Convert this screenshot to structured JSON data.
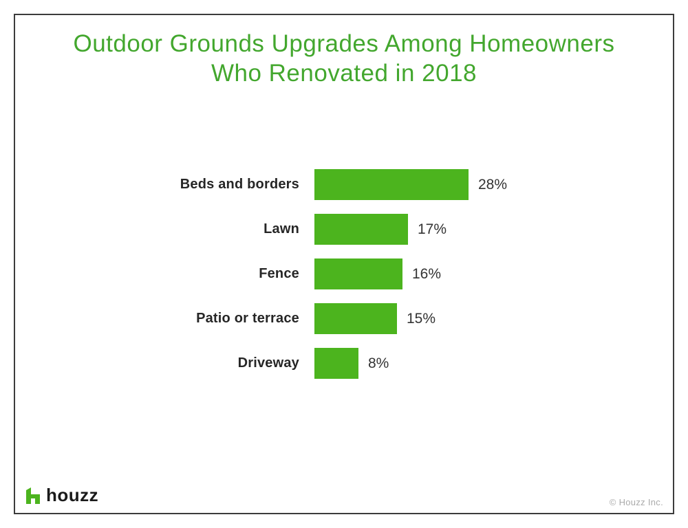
{
  "header": {
    "title_line1": "Outdoor Grounds Upgrades Among Homeowners",
    "title_line2": "Who Renovated in 2018"
  },
  "chart_data": {
    "type": "bar",
    "orientation": "horizontal",
    "title": "Outdoor Grounds Upgrades Among Homeowners Who Renovated in 2018",
    "categories": [
      "Beds and borders",
      "Lawn",
      "Fence",
      "Patio or terrace",
      "Driveway"
    ],
    "values": [
      28,
      17,
      16,
      15,
      8
    ],
    "value_labels": [
      "28%",
      "17%",
      "16%",
      "15%",
      "8%"
    ],
    "unit": "%",
    "xlim": [
      0,
      28
    ],
    "grid": false,
    "legend": null,
    "bar_color": "#4CB41E"
  },
  "footer": {
    "logo_text": "houzz",
    "logo_icon": "houzz-house-icon",
    "copyright": "© Houzz Inc."
  },
  "colors": {
    "bar_green": "#4CB41E",
    "title_green": "#43A72E",
    "label_text": "#262626",
    "value_text": "#333333",
    "copyright_gray": "#AAAAAA",
    "border_gray": "#3C3C3C",
    "background": "#FFFFFF"
  }
}
